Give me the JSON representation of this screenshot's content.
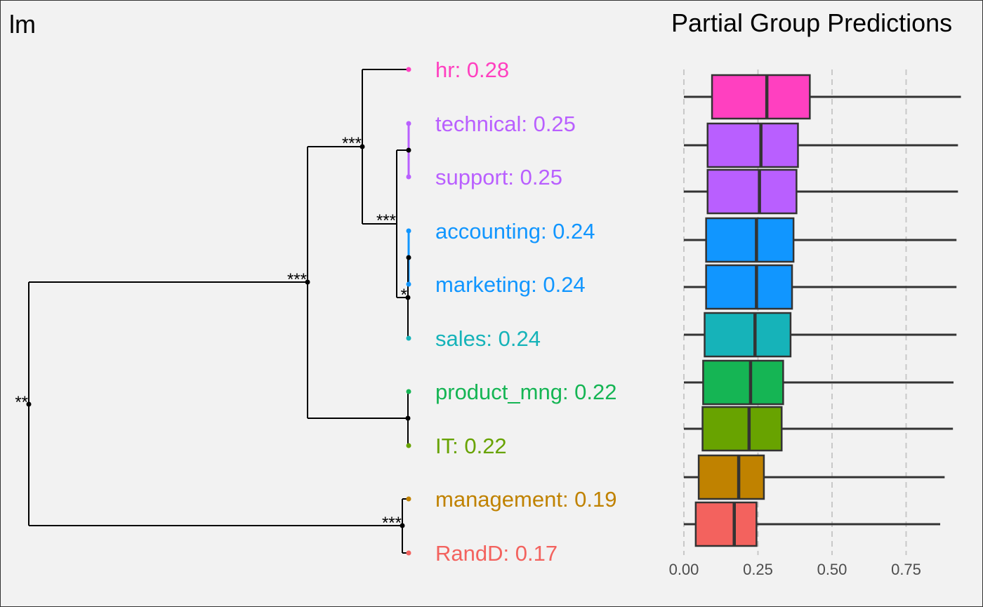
{
  "left_panel": {
    "title": "lm"
  },
  "right_panel": {
    "title": "Partial Group Predictions"
  },
  "chart_data": [
    {
      "type": "dendrogram",
      "title": "lm",
      "leaves": [
        {
          "name": "hr",
          "label": "hr: 0.28",
          "color": "#FF40C0"
        },
        {
          "name": "technical",
          "label": "technical: 0.25",
          "color": "#B95FFF"
        },
        {
          "name": "support",
          "label": "support: 0.25",
          "color": "#B95FFF"
        },
        {
          "name": "accounting",
          "label": "accounting: 0.24",
          "color": "#1196FF"
        },
        {
          "name": "marketing",
          "label": "marketing: 0.24",
          "color": "#1196FF"
        },
        {
          "name": "sales",
          "label": "sales: 0.24",
          "color": "#16B3B9"
        },
        {
          "name": "product_mng",
          "label": "product_mng: 0.22",
          "color": "#15B554"
        },
        {
          "name": "IT",
          "label": "IT: 0.22",
          "color": "#68A300"
        },
        {
          "name": "management",
          "label": "management: 0.19",
          "color": "#C08200"
        },
        {
          "name": "RandD",
          "label": "RandD: 0.17",
          "color": "#F3625E"
        }
      ],
      "significance_labels": [
        "***",
        "***",
        "***",
        "**",
        "*",
        "***"
      ]
    },
    {
      "type": "box",
      "title": "Partial Group Predictions",
      "xlim": [
        0,
        0.94
      ],
      "x_ticks": [
        0.0,
        0.25,
        0.5,
        0.75
      ],
      "x_tick_labels": [
        "0.00",
        "0.25",
        "0.50",
        "0.75"
      ],
      "grid": "vertical dashed",
      "series": [
        {
          "name": "hr",
          "min": 0.0,
          "q1": 0.095,
          "median": 0.28,
          "q3": 0.425,
          "max": 0.935,
          "color": "#FF40C0"
        },
        {
          "name": "technical",
          "min": 0.0,
          "q1": 0.08,
          "median": 0.26,
          "q3": 0.385,
          "max": 0.925,
          "color": "#B95FFF"
        },
        {
          "name": "support",
          "min": 0.0,
          "q1": 0.08,
          "median": 0.255,
          "q3": 0.38,
          "max": 0.925,
          "color": "#B95FFF"
        },
        {
          "name": "accounting",
          "min": 0.0,
          "q1": 0.075,
          "median": 0.245,
          "q3": 0.37,
          "max": 0.92,
          "color": "#1196FF"
        },
        {
          "name": "marketing",
          "min": 0.0,
          "q1": 0.075,
          "median": 0.245,
          "q3": 0.365,
          "max": 0.92,
          "color": "#1196FF"
        },
        {
          "name": "sales",
          "min": 0.0,
          "q1": 0.07,
          "median": 0.24,
          "q3": 0.36,
          "max": 0.92,
          "color": "#16B3B9"
        },
        {
          "name": "product_mng",
          "min": 0.0,
          "q1": 0.065,
          "median": 0.225,
          "q3": 0.335,
          "max": 0.91,
          "color": "#15B554"
        },
        {
          "name": "IT",
          "min": 0.0,
          "q1": 0.063,
          "median": 0.22,
          "q3": 0.33,
          "max": 0.908,
          "color": "#68A300"
        },
        {
          "name": "management",
          "min": 0.0,
          "q1": 0.05,
          "median": 0.185,
          "q3": 0.27,
          "max": 0.88,
          "color": "#C08200"
        },
        {
          "name": "RandD",
          "min": 0.0,
          "q1": 0.04,
          "median": 0.17,
          "q3": 0.245,
          "max": 0.865,
          "color": "#F3625E"
        }
      ]
    }
  ]
}
